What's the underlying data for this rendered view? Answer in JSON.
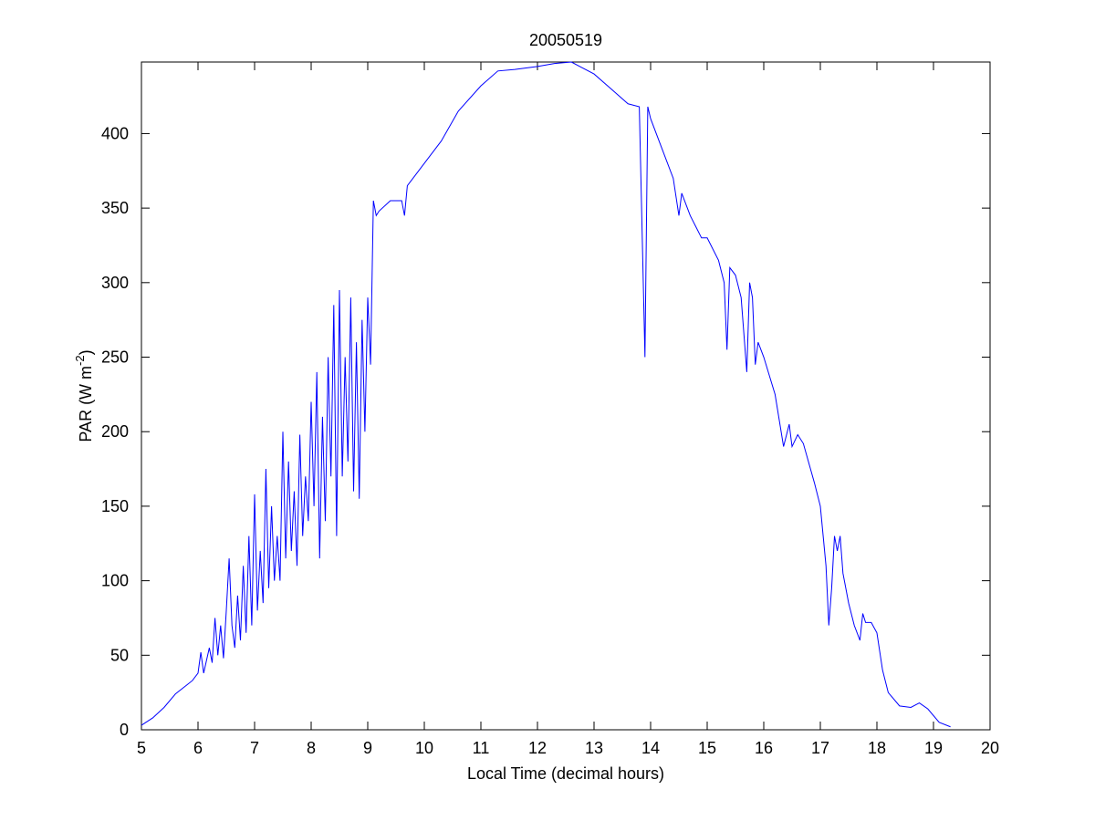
{
  "chart_data": {
    "type": "line",
    "title": "20050519",
    "xlabel": "Local Time (decimal hours)",
    "ylabel": {
      "text": "PAR (W m",
      "superscript": "-2",
      "suffix": ")"
    },
    "color": "#0000ff",
    "xlim": [
      5,
      20
    ],
    "xticks": [
      5,
      6,
      7,
      8,
      9,
      10,
      11,
      12,
      13,
      14,
      15,
      16,
      17,
      18,
      19,
      20
    ],
    "ylim": [
      0,
      448
    ],
    "yticks": [
      0,
      50,
      100,
      150,
      200,
      250,
      300,
      350,
      400
    ],
    "x": [
      5.0,
      5.2,
      5.4,
      5.6,
      5.8,
      5.9,
      6.0,
      6.05,
      6.1,
      6.2,
      6.25,
      6.3,
      6.35,
      6.4,
      6.45,
      6.5,
      6.55,
      6.6,
      6.65,
      6.7,
      6.75,
      6.8,
      6.85,
      6.9,
      6.95,
      7.0,
      7.05,
      7.1,
      7.15,
      7.2,
      7.25,
      7.3,
      7.35,
      7.4,
      7.45,
      7.5,
      7.55,
      7.6,
      7.65,
      7.7,
      7.75,
      7.8,
      7.85,
      7.9,
      7.95,
      8.0,
      8.05,
      8.1,
      8.15,
      8.2,
      8.25,
      8.3,
      8.35,
      8.4,
      8.45,
      8.5,
      8.55,
      8.6,
      8.65,
      8.7,
      8.75,
      8.8,
      8.85,
      8.9,
      8.95,
      9.0,
      9.05,
      9.1,
      9.15,
      9.2,
      9.4,
      9.6,
      9.65,
      9.7,
      10.0,
      10.3,
      10.6,
      11.0,
      11.3,
      11.6,
      12.0,
      12.3,
      12.6,
      13.0,
      13.3,
      13.6,
      13.8,
      13.9,
      13.95,
      14.0,
      14.2,
      14.4,
      14.5,
      14.55,
      14.7,
      14.9,
      15.0,
      15.2,
      15.3,
      15.35,
      15.4,
      15.5,
      15.6,
      15.7,
      15.75,
      15.8,
      15.85,
      15.9,
      16.0,
      16.2,
      16.35,
      16.45,
      16.5,
      16.6,
      16.7,
      16.9,
      17.0,
      17.1,
      17.15,
      17.2,
      17.25,
      17.3,
      17.35,
      17.4,
      17.5,
      17.6,
      17.7,
      17.75,
      17.8,
      17.9,
      18.0,
      18.1,
      18.2,
      18.4,
      18.6,
      18.75,
      18.9,
      19.1,
      19.3
    ],
    "values": [
      3,
      8,
      15,
      24,
      30,
      33,
      38,
      52,
      38,
      55,
      45,
      75,
      50,
      70,
      48,
      80,
      115,
      70,
      55,
      90,
      60,
      110,
      65,
      130,
      70,
      158,
      80,
      120,
      85,
      175,
      95,
      150,
      100,
      130,
      100,
      200,
      115,
      180,
      120,
      160,
      110,
      198,
      130,
      170,
      140,
      220,
      150,
      240,
      115,
      210,
      140,
      250,
      170,
      285,
      130,
      295,
      170,
      250,
      180,
      290,
      160,
      260,
      155,
      275,
      200,
      290,
      245,
      355,
      345,
      348,
      355,
      355,
      345,
      365,
      380,
      395,
      415,
      432,
      442,
      443,
      445,
      447,
      448,
      440,
      430,
      420,
      418,
      250,
      418,
      410,
      390,
      370,
      345,
      360,
      345,
      330,
      330,
      315,
      300,
      255,
      310,
      305,
      290,
      240,
      300,
      290,
      245,
      260,
      250,
      225,
      190,
      205,
      190,
      198,
      192,
      165,
      150,
      110,
      70,
      95,
      130,
      120,
      130,
      105,
      85,
      70,
      60,
      78,
      72,
      72,
      65,
      40,
      25,
      16,
      15,
      18,
      14,
      5,
      2
    ]
  }
}
